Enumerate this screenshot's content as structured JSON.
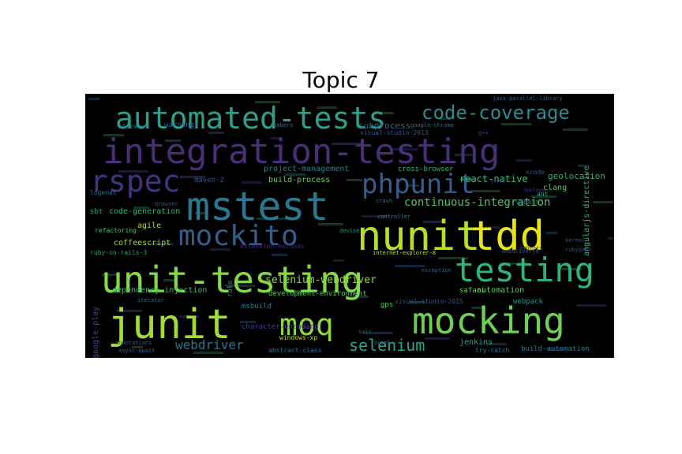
{
  "title": "Topic 7",
  "words": [
    {
      "text": "integration-testing",
      "color": "#482f78"
    },
    {
      "text": "unit-testing",
      "color": "#84d84a"
    },
    {
      "text": "nunit",
      "color": "#b7de2a"
    },
    {
      "text": "tdd",
      "color": "#e7e419"
    },
    {
      "text": "automated-tests",
      "color": "#2f9e8a"
    },
    {
      "text": "mocking",
      "color": "#70cf57"
    },
    {
      "text": "junit",
      "color": "#a4db37"
    },
    {
      "text": "mstest",
      "color": "#2a778f"
    },
    {
      "text": "testing",
      "color": "#2fb47c"
    },
    {
      "text": "mockito",
      "color": "#365c8d"
    },
    {
      "text": "phpunit",
      "color": "#355e8d"
    },
    {
      "text": "rspec",
      "color": "#46337f"
    },
    {
      "text": "moq",
      "color": "#8fd744"
    },
    {
      "text": "code-coverage",
      "color": "#2a8c8c"
    },
    {
      "text": "selenium",
      "color": "#25a88a"
    },
    {
      "text": "webdriver",
      "color": "#2c748e"
    },
    {
      "text": "continuous-integration",
      "color": "#4fc36b"
    },
    {
      "text": "selenium-webdriver",
      "color": "#8fd744"
    },
    {
      "text": "react-native",
      "color": "#3cbc75"
    },
    {
      "text": "geolocation",
      "color": "#2bb07f"
    },
    {
      "text": "subprocess",
      "color": "#31688e"
    },
    {
      "text": "project-management",
      "color": "#25848e"
    },
    {
      "text": "build-process",
      "color": "#6ccd5a"
    },
    {
      "text": "cross-browser",
      "color": "#2fb47c"
    },
    {
      "text": "xcode",
      "color": "#3b528b"
    },
    {
      "text": "webkit",
      "color": "#2a788e"
    },
    {
      "text": "ant",
      "color": "#2ab07f"
    },
    {
      "text": "clang",
      "color": "#5ec962"
    },
    {
      "text": "crash",
      "color": "#277f8e"
    },
    {
      "text": "controller",
      "color": "#24878e"
    },
    {
      "text": "code-generation",
      "color": "#2fb47c"
    },
    {
      "text": "agile",
      "color": "#b2dd2d"
    },
    {
      "text": "sbt",
      "color": "#1fa088"
    },
    {
      "text": "refactoring",
      "color": "#46c06f"
    },
    {
      "text": "coffeescript",
      "color": "#a2da37"
    },
    {
      "text": "ruby-on-rails-3",
      "color": "#1f9e89"
    },
    {
      "text": "extension-methods",
      "color": "#482878"
    },
    {
      "text": "dependency-injection",
      "color": "#3aba76"
    },
    {
      "text": "development-environment",
      "color": "#58c765"
    },
    {
      "text": "msbuild",
      "color": "#2c738e"
    },
    {
      "text": "character-encoding",
      "color": "#414487"
    },
    {
      "text": "windows-xp",
      "color": "#c2df23"
    },
    {
      "text": "abstract-class",
      "color": "#2e6f8e"
    },
    {
      "text": "automation",
      "color": "#60ca60"
    },
    {
      "text": "webpack",
      "color": "#1f9a8a"
    },
    {
      "text": "visual-studio-2015",
      "color": "#3b528b"
    },
    {
      "text": "build-automation",
      "color": "#287d8e"
    },
    {
      "text": "jenkins",
      "color": "#22a785"
    },
    {
      "text": "safari",
      "color": "#6ece58"
    },
    {
      "text": "internet-explorer-8",
      "color": "#c5e021"
    },
    {
      "text": "google-play",
      "color": "#3e4989"
    },
    {
      "text": "maven-2",
      "color": "#39558c"
    },
    {
      "text": "warnings",
      "color": "#33638d"
    },
    {
      "text": "iterator",
      "color": "#2a778e"
    },
    {
      "text": "numbers",
      "color": "#2d718e"
    },
    {
      "text": "logenet",
      "color": "#2c728e"
    },
    {
      "text": "angularjs-directive",
      "color": "#2eb37c"
    },
    {
      "text": "visual-studio-2013",
      "color": "#375b8d"
    },
    {
      "text": "google-chrome",
      "color": "#2b758e"
    },
    {
      "text": "iterator",
      "color": "#2c738e"
    },
    {
      "text": "rake",
      "color": "#2c738e"
    },
    {
      "text": "kernel",
      "color": "#3a538b"
    },
    {
      "text": "rubygems",
      "color": "#3f4788"
    },
    {
      "text": "try-catch",
      "color": "#287c8e"
    },
    {
      "text": "webdriverjs",
      "color": "#3b528b"
    },
    {
      "text": "gps",
      "color": "#50c46a"
    },
    {
      "text": "devise",
      "color": "#1f978b"
    },
    {
      "text": "ocaml",
      "color": "#2e6e8e"
    },
    {
      "text": "solr",
      "color": "#34618d"
    },
    {
      "text": "exception",
      "color": "#31678e"
    },
    {
      "text": "annotations",
      "color": "#365d8d"
    },
    {
      "text": "async-await",
      "color": "#2f6b8e"
    },
    {
      "text": "emberjs",
      "color": "#414487"
    },
    {
      "text": "g++",
      "color": "#3f4889"
    },
    {
      "text": "browser",
      "color": "#375b8d"
    },
    {
      "text": "deployment",
      "color": "#46337f"
    },
    {
      "text": "java-parallel-library",
      "color": "#33628d"
    },
    {
      "text": "grails",
      "color": "#3d4d8a"
    }
  ]
}
